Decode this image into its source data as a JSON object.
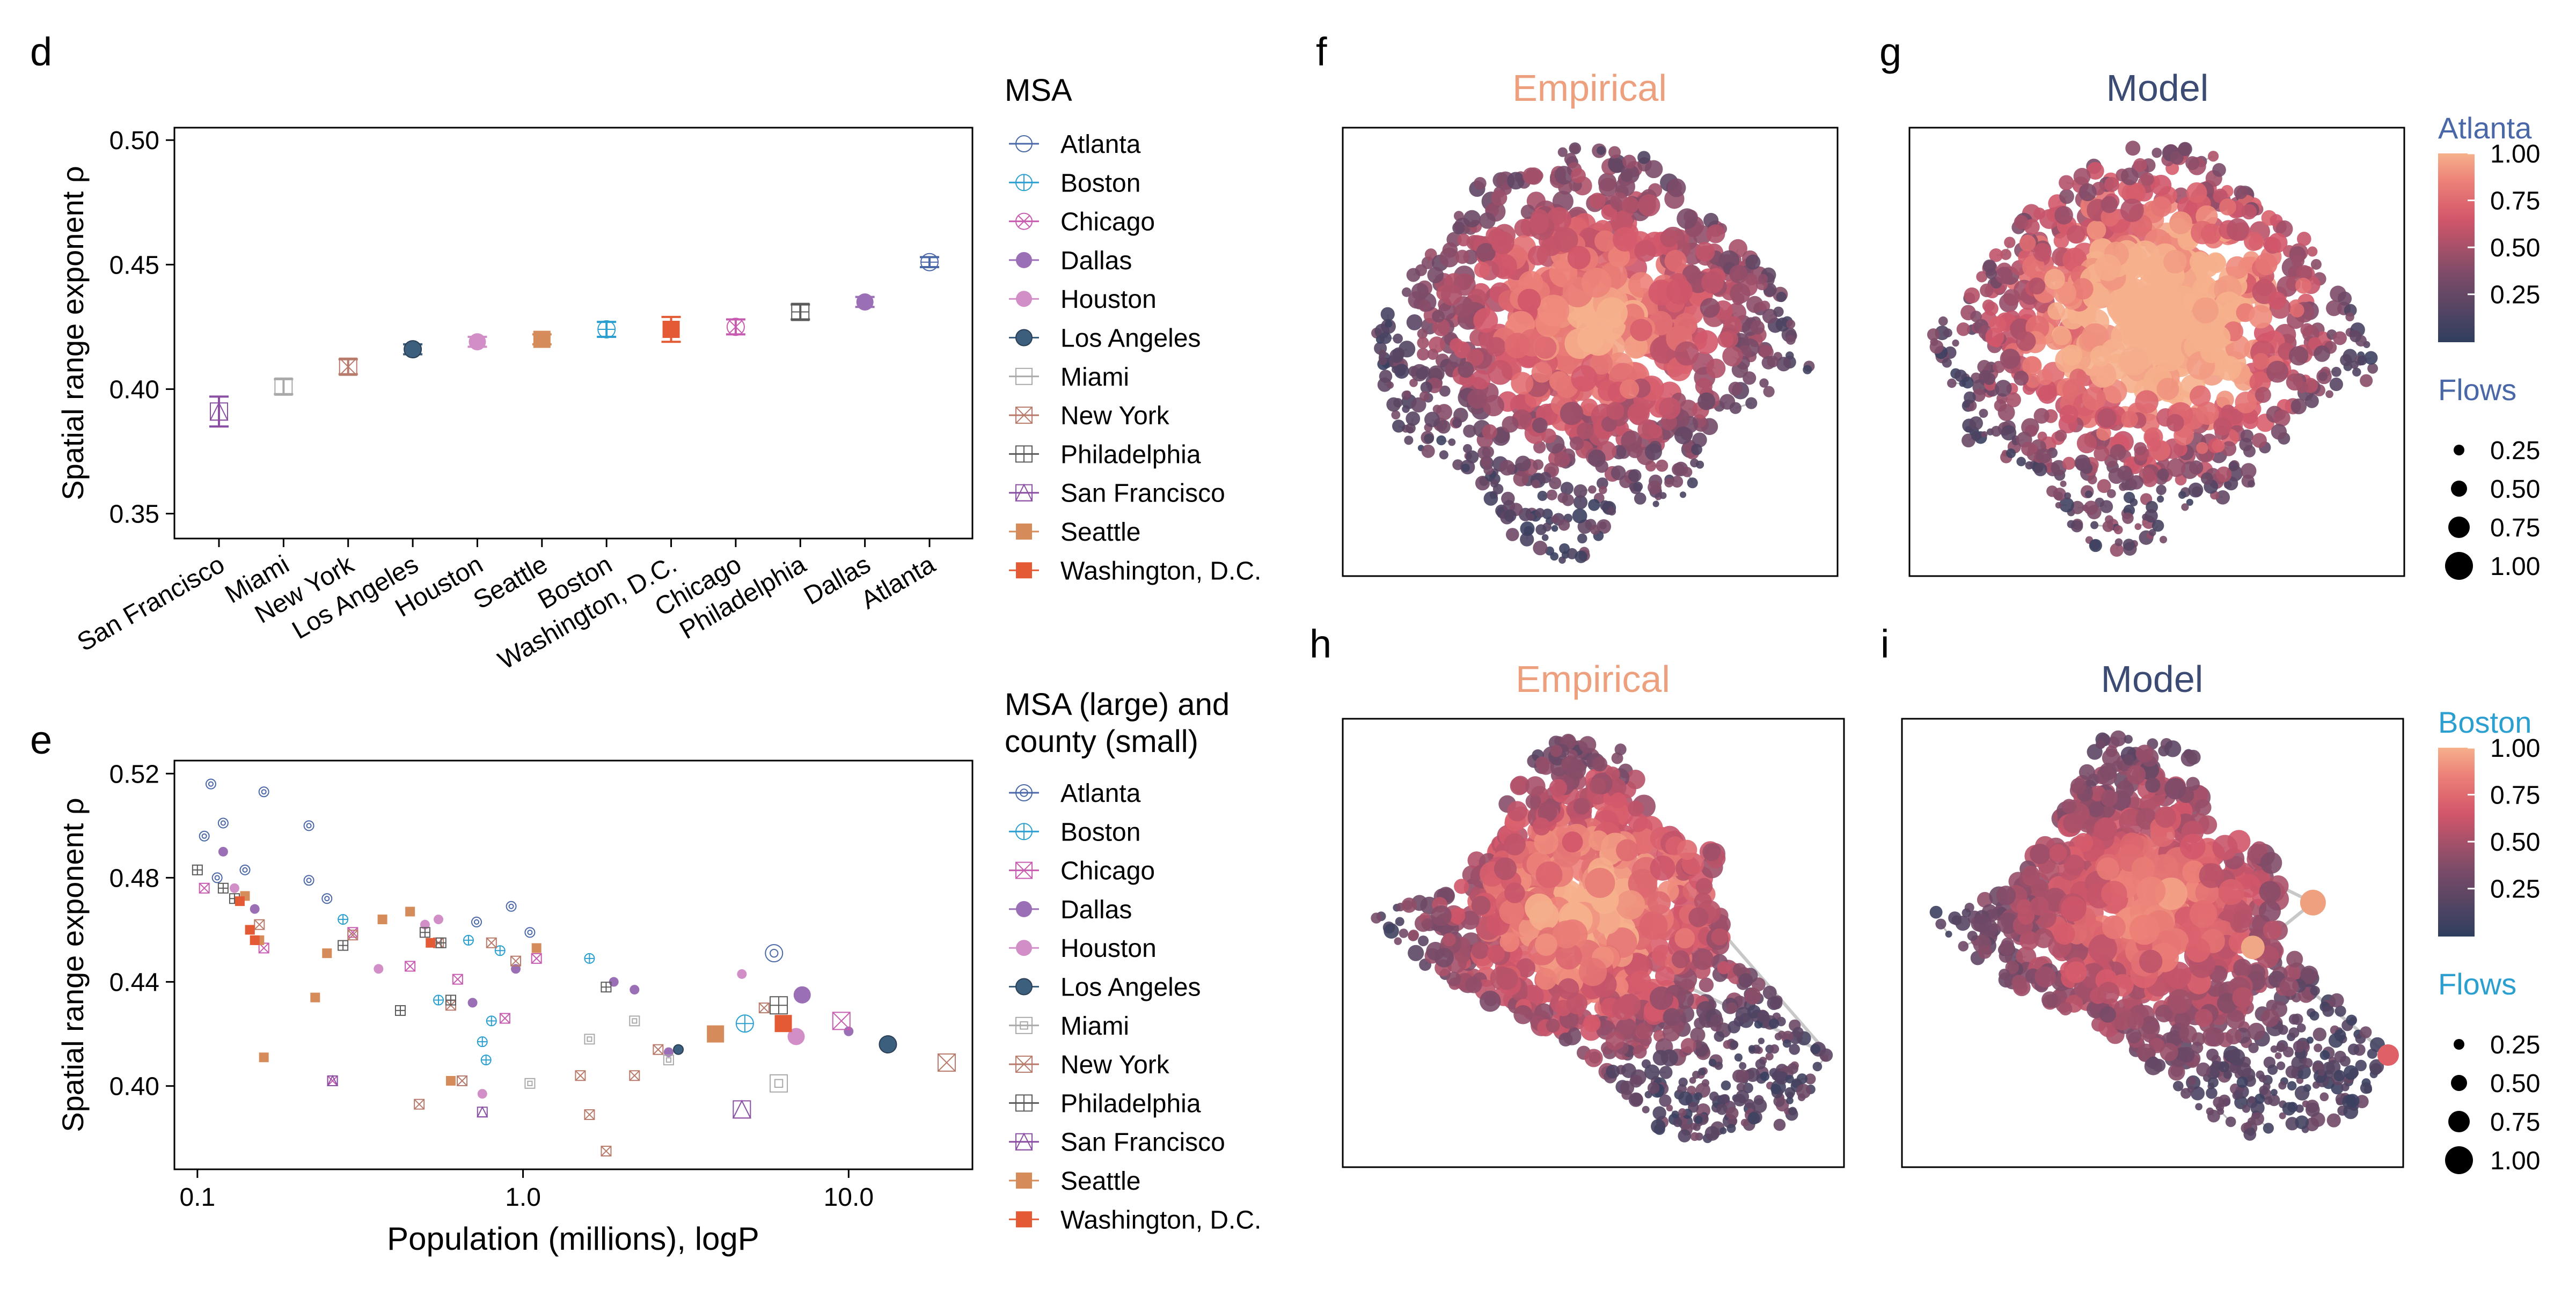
{
  "panels": {
    "d": "d",
    "e": "e",
    "f": "f",
    "g": "g",
    "h": "h",
    "i": "i"
  },
  "colors": {
    "Atlanta": "#4a67a8",
    "Boston": "#2b9fd0",
    "Chicago": "#c65bb0",
    "Dallas": "#9b6fb5",
    "Houston": "#d28fc7",
    "Los Angeles": "#3d5f7e",
    "Miami": "#a9a9a9",
    "New York": "#b87a6a",
    "Philadelphia": "#5a5a5a",
    "San Francisco": "#8a4fa3",
    "Seattle": "#d68c5a",
    "Washington, D.C.": "#e35a35",
    "title_empirical": "#eda07e",
    "title_model": "#3c4b73",
    "net_low": "#2f3e5e",
    "net_high": "#f6b08c",
    "edge": "#bdbdbd"
  },
  "legend_d": {
    "title": "MSA",
    "items": [
      {
        "label": "Atlanta",
        "marker": "circle-bar"
      },
      {
        "label": "Boston",
        "marker": "circle-plus"
      },
      {
        "label": "Chicago",
        "marker": "circle-x"
      },
      {
        "label": "Dallas",
        "marker": "filled-circle"
      },
      {
        "label": "Houston",
        "marker": "filled-circle"
      },
      {
        "label": "Los Angeles",
        "marker": "filled-circle-dark"
      },
      {
        "label": "Miami",
        "marker": "square"
      },
      {
        "label": "New York",
        "marker": "square-x"
      },
      {
        "label": "Philadelphia",
        "marker": "square-plus"
      },
      {
        "label": "San Francisco",
        "marker": "triangle-square"
      },
      {
        "label": "Seattle",
        "marker": "filled-square"
      },
      {
        "label": "Washington, D.C.",
        "marker": "filled-square"
      }
    ]
  },
  "legend_e": {
    "title_line1": "MSA (large) and",
    "title_line2": "county (small)",
    "items": [
      {
        "label": "Atlanta",
        "marker": "circle-dot"
      },
      {
        "label": "Boston",
        "marker": "circle-plus"
      },
      {
        "label": "Chicago",
        "marker": "square-x"
      },
      {
        "label": "Dallas",
        "marker": "filled-circle"
      },
      {
        "label": "Houston",
        "marker": "filled-circle"
      },
      {
        "label": "Los Angeles",
        "marker": "filled-circle-dark"
      },
      {
        "label": "Miami",
        "marker": "square-dot"
      },
      {
        "label": "New York",
        "marker": "square-x"
      },
      {
        "label": "Philadelphia",
        "marker": "square-plus"
      },
      {
        "label": "San Francisco",
        "marker": "triangle-square"
      },
      {
        "label": "Seattle",
        "marker": "filled-square"
      },
      {
        "label": "Washington, D.C.",
        "marker": "filled-square"
      }
    ]
  },
  "networks": {
    "row1": {
      "left_title": "Empirical",
      "right_title": "Model",
      "city": "Atlanta",
      "colorbar_ticks": [
        "1.00",
        "0.75",
        "0.50",
        "0.25"
      ],
      "flows_title": "Flows",
      "flows_ticks": [
        "0.25",
        "0.50",
        "0.75",
        "1.00"
      ]
    },
    "row2": {
      "left_title": "Empirical",
      "right_title": "Model",
      "city": "Boston",
      "colorbar_ticks": [
        "1.00",
        "0.75",
        "0.50",
        "0.25"
      ],
      "flows_title": "Flows",
      "flows_ticks": [
        "0.25",
        "0.50",
        "0.75",
        "1.00"
      ]
    }
  },
  "chart_data": [
    {
      "panel": "d",
      "type": "scatter",
      "xlabel": "",
      "ylabel": "Spatial range exponent ρ",
      "ylim": [
        0.34,
        0.505
      ],
      "yticks": [
        0.35,
        0.4,
        0.45,
        0.5
      ],
      "ytick_labels": [
        "0.35",
        "0.40",
        "0.45",
        "0.50"
      ],
      "categories": [
        "San Francisco",
        "Miami",
        "New York",
        "Los Angeles",
        "Houston",
        "Seattle",
        "Boston",
        "Washington, D.C.",
        "Chicago",
        "Philadelphia",
        "Dallas",
        "Atlanta"
      ],
      "values": [
        0.391,
        0.401,
        0.409,
        0.416,
        0.419,
        0.42,
        0.424,
        0.424,
        0.425,
        0.431,
        0.435,
        0.451
      ],
      "err_low": [
        0.385,
        0.398,
        0.406,
        0.414,
        0.417,
        0.418,
        0.421,
        0.419,
        0.422,
        0.428,
        0.433,
        0.449
      ],
      "err_high": [
        0.397,
        0.404,
        0.412,
        0.418,
        0.421,
        0.422,
        0.427,
        0.429,
        0.428,
        0.434,
        0.437,
        0.453
      ],
      "grid": false
    },
    {
      "panel": "e",
      "type": "scatter",
      "xlabel": "Population (millions), logP",
      "ylabel": "Spatial range exponent ρ",
      "xscale": "log",
      "xlim": [
        0.085,
        24
      ],
      "ylim": [
        0.368,
        0.525
      ],
      "xticks": [
        0.1,
        1.0,
        10.0
      ],
      "xtick_labels": [
        "0.1",
        "1.0",
        "10.0"
      ],
      "yticks": [
        0.4,
        0.44,
        0.48,
        0.52
      ],
      "ytick_labels": [
        "0.40",
        "0.44",
        "0.48",
        "0.52"
      ],
      "grid": false,
      "msa_points": [
        {
          "city": "Atlanta",
          "x": 5.9,
          "y": 0.451
        },
        {
          "city": "Boston",
          "x": 4.8,
          "y": 0.424
        },
        {
          "city": "Chicago",
          "x": 9.5,
          "y": 0.425
        },
        {
          "city": "Dallas",
          "x": 7.2,
          "y": 0.435
        },
        {
          "city": "Houston",
          "x": 6.9,
          "y": 0.419
        },
        {
          "city": "Los Angeles",
          "x": 13.2,
          "y": 0.416
        },
        {
          "city": "Miami",
          "x": 6.1,
          "y": 0.401
        },
        {
          "city": "New York",
          "x": 20.0,
          "y": 0.409
        },
        {
          "city": "Philadelphia",
          "x": 6.1,
          "y": 0.431
        },
        {
          "city": "San Francisco",
          "x": 4.7,
          "y": 0.391
        },
        {
          "city": "Seattle",
          "x": 3.9,
          "y": 0.42
        },
        {
          "city": "Washington, D.C.",
          "x": 6.3,
          "y": 0.424
        }
      ],
      "county_points": [
        {
          "city": "Atlanta",
          "x": 0.11,
          "y": 0.516
        },
        {
          "city": "Atlanta",
          "x": 0.16,
          "y": 0.513
        },
        {
          "city": "Atlanta",
          "x": 0.12,
          "y": 0.501
        },
        {
          "city": "Atlanta",
          "x": 0.22,
          "y": 0.5
        },
        {
          "city": "Atlanta",
          "x": 0.105,
          "y": 0.496
        },
        {
          "city": "Atlanta",
          "x": 0.14,
          "y": 0.483
        },
        {
          "city": "Atlanta",
          "x": 0.115,
          "y": 0.48
        },
        {
          "city": "Atlanta",
          "x": 0.22,
          "y": 0.479
        },
        {
          "city": "Atlanta",
          "x": 0.25,
          "y": 0.472
        },
        {
          "city": "Atlanta",
          "x": 0.92,
          "y": 0.469
        },
        {
          "city": "Atlanta",
          "x": 0.72,
          "y": 0.463
        },
        {
          "city": "Atlanta",
          "x": 1.05,
          "y": 0.459
        },
        {
          "city": "Boston",
          "x": 0.28,
          "y": 0.464
        },
        {
          "city": "Boston",
          "x": 1.6,
          "y": 0.449
        },
        {
          "city": "Boston",
          "x": 0.68,
          "y": 0.456
        },
        {
          "city": "Boston",
          "x": 0.85,
          "y": 0.452
        },
        {
          "city": "Boston",
          "x": 0.55,
          "y": 0.433
        },
        {
          "city": "Boston",
          "x": 0.8,
          "y": 0.425
        },
        {
          "city": "Boston",
          "x": 0.75,
          "y": 0.417
        },
        {
          "city": "Boston",
          "x": 0.77,
          "y": 0.41
        },
        {
          "city": "Chicago",
          "x": 0.105,
          "y": 0.476
        },
        {
          "city": "Chicago",
          "x": 0.16,
          "y": 0.453
        },
        {
          "city": "Chicago",
          "x": 0.3,
          "y": 0.459
        },
        {
          "city": "Chicago",
          "x": 0.45,
          "y": 0.446
        },
        {
          "city": "Chicago",
          "x": 0.88,
          "y": 0.426
        },
        {
          "city": "Chicago",
          "x": 1.1,
          "y": 0.449
        },
        {
          "city": "Chicago",
          "x": 0.63,
          "y": 0.441
        },
        {
          "city": "Chicago",
          "x": 0.26,
          "y": 0.402
        },
        {
          "city": "Dallas",
          "x": 0.15,
          "y": 0.468
        },
        {
          "city": "Dallas",
          "x": 0.12,
          "y": 0.49
        },
        {
          "city": "Dallas",
          "x": 1.9,
          "y": 0.44
        },
        {
          "city": "Dallas",
          "x": 2.2,
          "y": 0.437
        },
        {
          "city": "Dallas",
          "x": 2.8,
          "y": 0.413
        },
        {
          "city": "Dallas",
          "x": 10.0,
          "y": 0.421
        },
        {
          "city": "Dallas",
          "x": 0.95,
          "y": 0.445
        },
        {
          "city": "Dallas",
          "x": 0.7,
          "y": 0.432
        },
        {
          "city": "Houston",
          "x": 0.13,
          "y": 0.476
        },
        {
          "city": "Houston",
          "x": 0.5,
          "y": 0.462
        },
        {
          "city": "Houston",
          "x": 0.75,
          "y": 0.397
        },
        {
          "city": "Houston",
          "x": 0.36,
          "y": 0.445
        },
        {
          "city": "Houston",
          "x": 0.55,
          "y": 0.464
        },
        {
          "city": "Houston",
          "x": 4.7,
          "y": 0.443
        },
        {
          "city": "Los Angeles",
          "x": 3.0,
          "y": 0.414
        },
        {
          "city": "Miami",
          "x": 1.6,
          "y": 0.418
        },
        {
          "city": "Miami",
          "x": 2.2,
          "y": 0.425
        },
        {
          "city": "Miami",
          "x": 2.8,
          "y": 0.41
        },
        {
          "city": "Miami",
          "x": 1.05,
          "y": 0.401
        },
        {
          "city": "New York",
          "x": 0.155,
          "y": 0.462
        },
        {
          "city": "New York",
          "x": 0.3,
          "y": 0.458
        },
        {
          "city": "New York",
          "x": 0.55,
          "y": 0.455
        },
        {
          "city": "New York",
          "x": 0.8,
          "y": 0.455
        },
        {
          "city": "New York",
          "x": 0.95,
          "y": 0.448
        },
        {
          "city": "New York",
          "x": 0.6,
          "y": 0.431
        },
        {
          "city": "New York",
          "x": 0.48,
          "y": 0.393
        },
        {
          "city": "New York",
          "x": 0.65,
          "y": 0.402
        },
        {
          "city": "New York",
          "x": 1.5,
          "y": 0.404
        },
        {
          "city": "New York",
          "x": 1.6,
          "y": 0.389
        },
        {
          "city": "New York",
          "x": 1.8,
          "y": 0.375
        },
        {
          "city": "New York",
          "x": 2.2,
          "y": 0.404
        },
        {
          "city": "New York",
          "x": 2.6,
          "y": 0.414
        },
        {
          "city": "New York",
          "x": 5.5,
          "y": 0.43
        },
        {
          "city": "Philadelphia",
          "x": 0.1,
          "y": 0.483
        },
        {
          "city": "Philadelphia",
          "x": 0.12,
          "y": 0.476
        },
        {
          "city": "Philadelphia",
          "x": 0.13,
          "y": 0.472
        },
        {
          "city": "Philadelphia",
          "x": 0.28,
          "y": 0.454
        },
        {
          "city": "Philadelphia",
          "x": 0.42,
          "y": 0.429
        },
        {
          "city": "Philadelphia",
          "x": 0.5,
          "y": 0.459
        },
        {
          "city": "Philadelphia",
          "x": 0.56,
          "y": 0.455
        },
        {
          "city": "Philadelphia",
          "x": 0.6,
          "y": 0.433
        },
        {
          "city": "Philadelphia",
          "x": 1.8,
          "y": 0.438
        },
        {
          "city": "San Francisco",
          "x": 0.26,
          "y": 0.402
        },
        {
          "city": "San Francisco",
          "x": 0.75,
          "y": 0.39
        },
        {
          "city": "Seattle",
          "x": 0.14,
          "y": 0.473
        },
        {
          "city": "Seattle",
          "x": 0.145,
          "y": 0.46
        },
        {
          "city": "Seattle",
          "x": 0.155,
          "y": 0.456
        },
        {
          "city": "Seattle",
          "x": 0.16,
          "y": 0.411
        },
        {
          "city": "Seattle",
          "x": 0.23,
          "y": 0.434
        },
        {
          "city": "Seattle",
          "x": 0.25,
          "y": 0.451
        },
        {
          "city": "Seattle",
          "x": 0.37,
          "y": 0.464
        },
        {
          "city": "Seattle",
          "x": 0.45,
          "y": 0.467
        },
        {
          "city": "Seattle",
          "x": 0.6,
          "y": 0.402
        },
        {
          "city": "Seattle",
          "x": 1.1,
          "y": 0.453
        },
        {
          "city": "Washington, D.C.",
          "x": 0.135,
          "y": 0.471
        },
        {
          "city": "Washington, D.C.",
          "x": 0.145,
          "y": 0.46
        },
        {
          "city": "Washington, D.C.",
          "x": 0.15,
          "y": 0.456
        },
        {
          "city": "Washington, D.C.",
          "x": 0.52,
          "y": 0.455
        }
      ]
    }
  ]
}
